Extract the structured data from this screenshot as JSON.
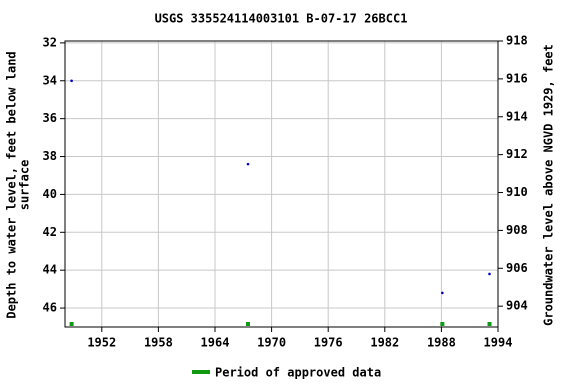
{
  "chart_data": {
    "type": "scatter",
    "title": "USGS 335524114003101 B-07-17 26BCC1",
    "ylabel": [
      "Depth to water level, feet below land",
      "surface"
    ],
    "y2label": "Groundwater level above NGVD 1929, feet",
    "x": [
      1948.8,
      1967.5,
      1988.1,
      1993.1
    ],
    "values": [
      34.0,
      38.4,
      45.2,
      44.2
    ],
    "color": "#0000cc",
    "approved": {
      "name": "Period of approved data",
      "color": "#119911",
      "x": [
        1948.8,
        1967.5,
        1988.1,
        1993.1
      ]
    },
    "xlim": [
      1948.1,
      1994
    ],
    "xticks": [
      1952,
      1958,
      1964,
      1970,
      1976,
      1982,
      1988,
      1994
    ],
    "ylim": [
      31.9,
      47.0
    ],
    "yticks": [
      32,
      34,
      36,
      38,
      40,
      42,
      44,
      46
    ],
    "y2lim": [
      918,
      902.9
    ],
    "y2ticks": [
      904,
      906,
      908,
      910,
      912,
      914,
      916,
      918
    ],
    "grid": true
  }
}
